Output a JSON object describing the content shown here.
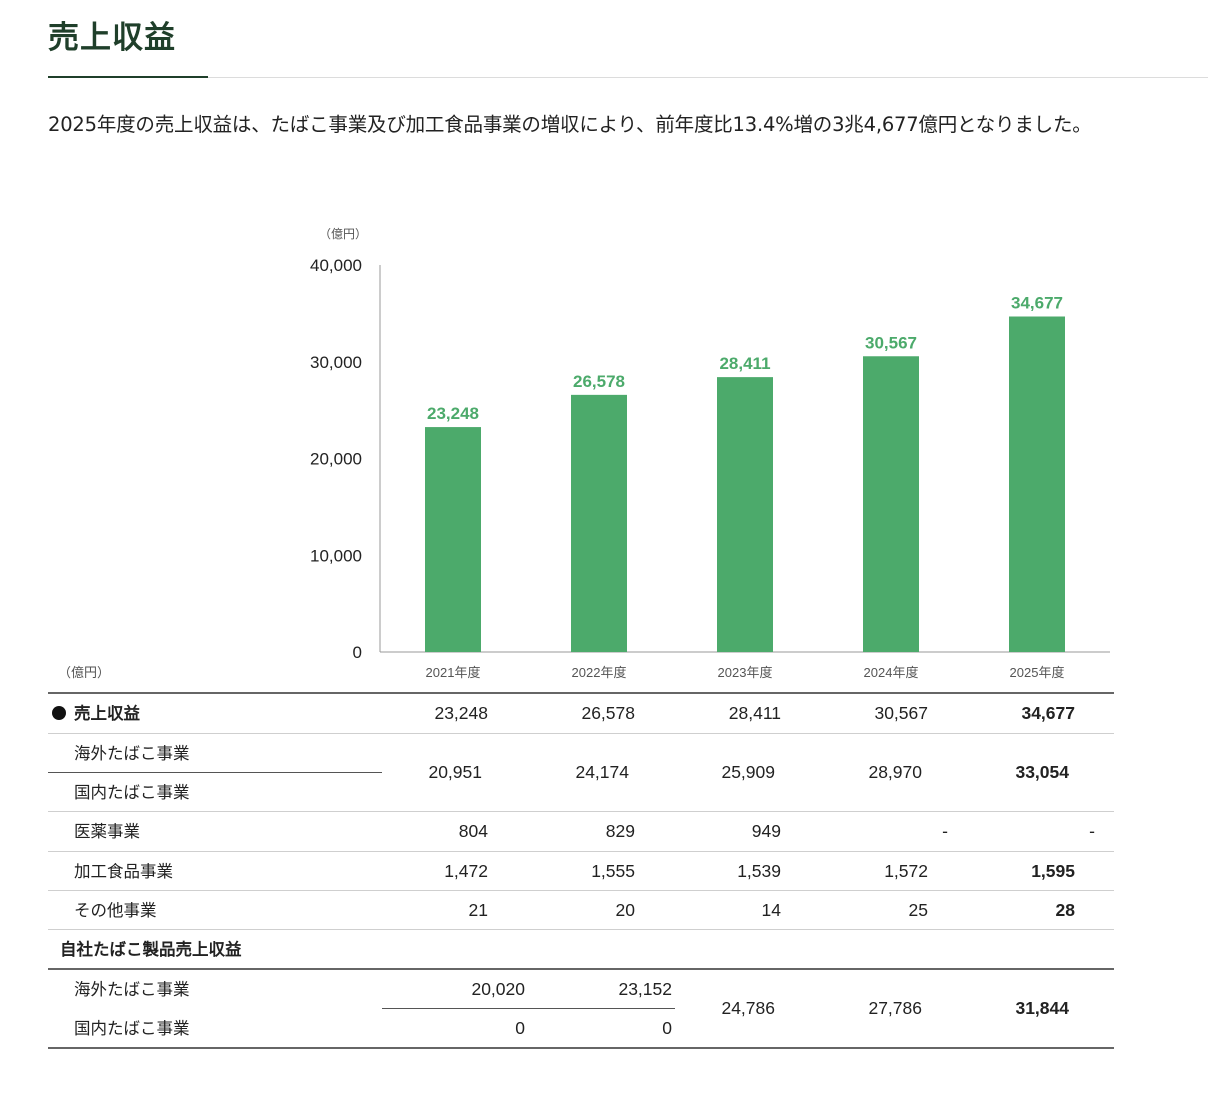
{
  "header": {
    "title": "売上収益",
    "summary": "2025年度の売上収益は、たばこ事業及び加工食品事業の増収により、前年度比13.4%増の3兆4,677億円となりました。"
  },
  "colors": {
    "bar": "#4caa6b",
    "title": "#1f3f2a"
  },
  "chart_data": {
    "type": "bar",
    "unit_label": "（億円）",
    "categories": [
      "2021年度",
      "2022年度",
      "2023年度",
      "2024年度",
      "2025年度"
    ],
    "values": [
      23248,
      26578,
      28411,
      30567,
      34677
    ],
    "data_labels": [
      "23,248",
      "26,578",
      "28,411",
      "30,567",
      "34,677"
    ],
    "yticks": [
      0,
      10000,
      20000,
      30000,
      40000
    ],
    "ytick_labels": [
      "0",
      "10,000",
      "20,000",
      "30,000",
      "40,000"
    ],
    "ylim": [
      0,
      40000
    ],
    "grid": false
  },
  "table": {
    "unit_label": "（億円）",
    "revenue": {
      "label": "売上収益",
      "values": [
        "23,248",
        "26,578",
        "28,411",
        "30,567",
        "34,677"
      ]
    },
    "overseas_tobacco": {
      "label": "海外たばこ事業"
    },
    "domestic_tobacco": {
      "label": "国内たばこ事業"
    },
    "tobacco_combined": [
      "20,951",
      "24,174",
      "25,909",
      "28,970",
      "33,054"
    ],
    "pharma": {
      "label": "医薬事業",
      "values": [
        "804",
        "829",
        "949",
        "-",
        "-"
      ]
    },
    "processed_food": {
      "label": "加工食品事業",
      "values": [
        "1,472",
        "1,555",
        "1,539",
        "1,572",
        "1,595"
      ]
    },
    "other": {
      "label": "その他事業",
      "values": [
        "21",
        "20",
        "14",
        "25",
        "28"
      ]
    },
    "own_products": {
      "label": "自社たばこ製品売上収益",
      "overseas_label": "海外たばこ事業",
      "domestic_label": "国内たばこ事業",
      "overseas_values": [
        "20,020",
        "23,152"
      ],
      "domestic_values": [
        "0",
        "0"
      ],
      "combined_values": [
        "24,786",
        "27,786",
        "31,844"
      ]
    }
  }
}
